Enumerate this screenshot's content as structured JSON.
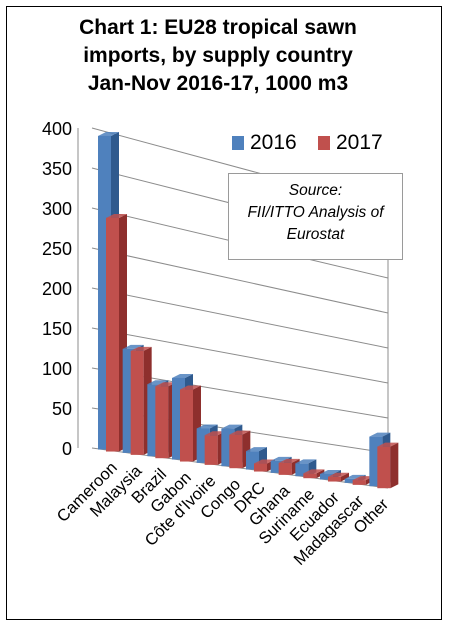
{
  "title_lines": [
    "Chart 1: EU28 tropical sawn",
    "imports, by supply country",
    "Jan-Nov 2016-17, 1000 m3"
  ],
  "source_lines": [
    "Source:",
    "FII/ITTO Analysis of",
    "Eurostat"
  ],
  "colors": {
    "s2016": "#4f81bd",
    "s2016_dark": "#2f5a8e",
    "s2017": "#c0504d",
    "s2017_dark": "#8e2f2d",
    "grid": "#8c8c8c"
  },
  "chart_data": {
    "type": "bar",
    "title": "Chart 1: EU28 tropical sawn imports, by supply country Jan-Nov 2016-17, 1000 m3",
    "categories": [
      "Cameroon",
      "Malaysia",
      "Brazil",
      "Gabon",
      "Côte d'Ivoire",
      "Congo",
      "DRC",
      "Ghana",
      "Suriname",
      "Ecuador",
      "Madagascar",
      "Other"
    ],
    "series": [
      {
        "name": "2016",
        "values": [
          392,
          130,
          90,
          102,
          43,
          47,
          23,
          15,
          16,
          7,
          5,
          62
        ]
      },
      {
        "name": "2017",
        "values": [
          292,
          130,
          90,
          90,
          37,
          42,
          10,
          15,
          6,
          6,
          6,
          52
        ]
      }
    ],
    "ylim": [
      0,
      400
    ],
    "yticks": [
      0,
      50,
      100,
      150,
      200,
      250,
      300,
      350,
      400
    ],
    "grid": true,
    "legend": "top-right"
  }
}
